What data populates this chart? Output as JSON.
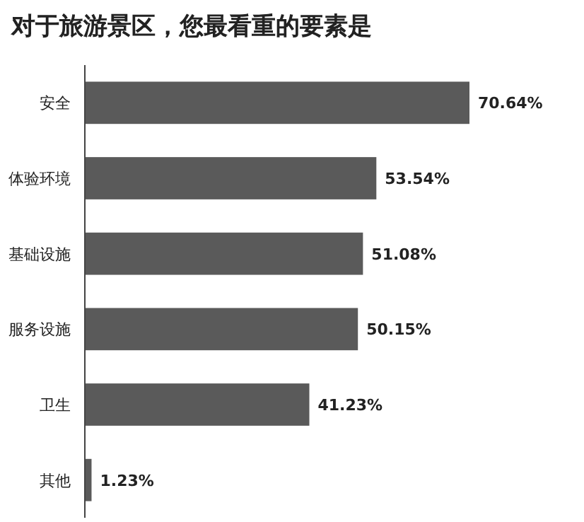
{
  "chart_data": {
    "type": "bar",
    "orientation": "horizontal",
    "title": "对于旅游景区，您最看重的要素是",
    "categories": [
      "安全",
      "体验环境",
      "基础设施",
      "服务设施",
      "卫生",
      "其他"
    ],
    "values": [
      70.64,
      53.54,
      51.08,
      50.15,
      41.23,
      1.23
    ],
    "value_labels": [
      "70.64%",
      "53.54%",
      "51.08%",
      "50.15%",
      "41.23%",
      "1.23%"
    ],
    "color": "#5a5a5a"
  }
}
